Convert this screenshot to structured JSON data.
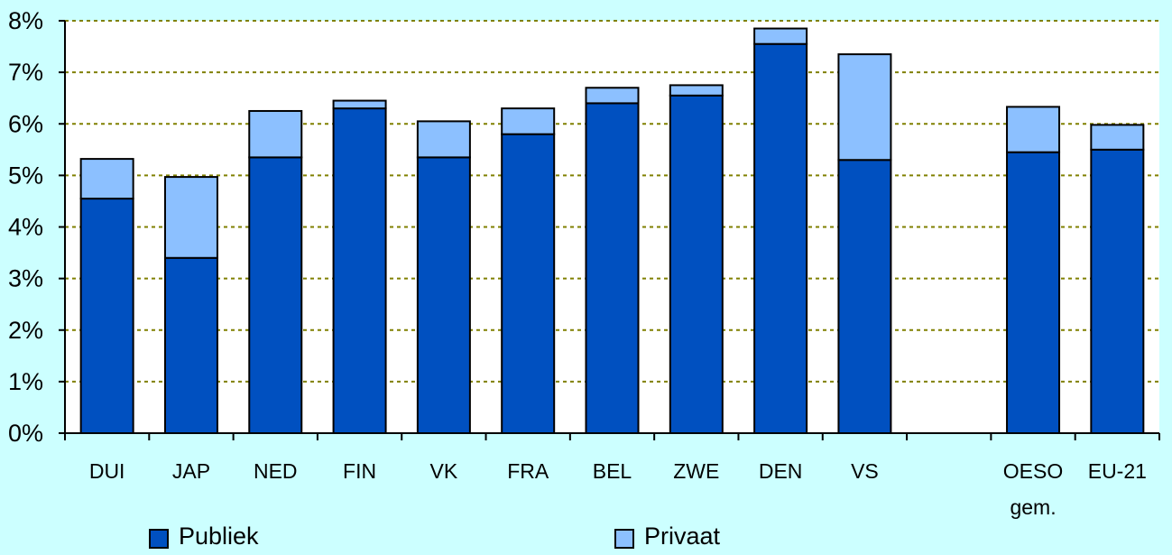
{
  "chart_data": {
    "type": "bar",
    "stacked": true,
    "categories": [
      "DUI",
      "JAP",
      "NED",
      "FIN",
      "VK",
      "FRA",
      "BEL",
      "ZWE",
      "DEN",
      "VS",
      "",
      "OESO gem.",
      "EU-21"
    ],
    "category_lines": [
      [
        "DUI"
      ],
      [
        "JAP"
      ],
      [
        "NED"
      ],
      [
        "FIN"
      ],
      [
        "VK"
      ],
      [
        "FRA"
      ],
      [
        "BEL"
      ],
      [
        "ZWE"
      ],
      [
        "DEN"
      ],
      [
        "VS"
      ],
      [],
      [
        "OESO",
        "gem."
      ],
      [
        "EU-21"
      ]
    ],
    "series": [
      {
        "name": "Publiek",
        "color": "#0050c0",
        "values": [
          4.55,
          3.4,
          5.35,
          6.3,
          5.35,
          5.8,
          6.4,
          6.55,
          7.55,
          5.3,
          null,
          5.45,
          5.5
        ]
      },
      {
        "name": "Privaat",
        "color": "#8cc0ff",
        "values": [
          0.77,
          1.57,
          0.9,
          0.15,
          0.7,
          0.5,
          0.3,
          0.2,
          0.3,
          2.05,
          null,
          0.88,
          0.48
        ]
      }
    ],
    "ylim": [
      0,
      8
    ],
    "yticks": [
      "0%",
      "1%",
      "2%",
      "3%",
      "4%",
      "5%",
      "6%",
      "7%",
      "8%"
    ],
    "grid": true,
    "legend_position": "bottom",
    "plot_background": "#ffffff",
    "page_background": "#ccffff",
    "grid_color": "#808000"
  }
}
